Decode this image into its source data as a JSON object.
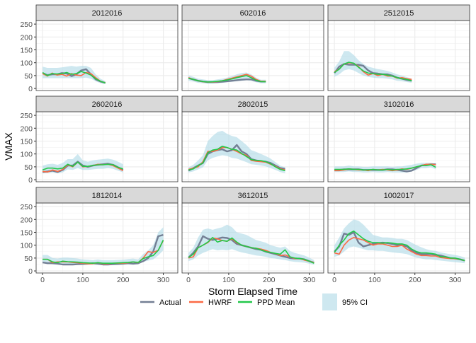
{
  "chart_data": {
    "type": "line",
    "layout": "facet-wrap 3x3",
    "xlabel": "Storm Elapsed Time",
    "ylabel": "VMAX",
    "xlim": [
      -16,
      336
    ],
    "ylim": [
      -8,
      264
    ],
    "x_ticks": [
      0,
      100,
      200,
      300
    ],
    "y_ticks": [
      0,
      50,
      100,
      150,
      200,
      250
    ],
    "grid": true,
    "legend_position": "bottom",
    "legend": [
      {
        "key": "actual",
        "label": "Actual",
        "color": "#737f94",
        "kind": "line"
      },
      {
        "key": "hwrf",
        "label": "HWRF",
        "color": "#fb6a45",
        "kind": "line"
      },
      {
        "key": "ppd",
        "label": "PPD Mean",
        "color": "#22c84a",
        "kind": "line"
      },
      {
        "key": "ci",
        "label": "95% CI",
        "color": "#add8e6",
        "kind": "fill"
      }
    ],
    "panels": [
      {
        "title": "2012016",
        "x": [
          0,
          12,
          24,
          36,
          48,
          60,
          72,
          84,
          96,
          108,
          120,
          132,
          144,
          156
        ],
        "actual": [
          60,
          52,
          55,
          55,
          60,
          58,
          48,
          55,
          70,
          75,
          55,
          35,
          27,
          22
        ],
        "hwrf": [
          58,
          48,
          60,
          52,
          55,
          48,
          58,
          52,
          50,
          62,
          58,
          42,
          28,
          22
        ],
        "ppd": [
          62,
          50,
          58,
          56,
          58,
          62,
          55,
          58,
          66,
          60,
          52,
          38,
          28,
          21
        ],
        "ci_low": [
          40,
          40,
          40,
          40,
          40,
          40,
          40,
          40,
          40,
          42,
          38,
          28,
          20,
          17
        ],
        "ci_high": [
          85,
          80,
          80,
          80,
          82,
          85,
          88,
          85,
          88,
          88,
          80,
          55,
          38,
          28
        ]
      },
      {
        "title": "602016",
        "x": [
          0,
          12,
          24,
          36,
          48,
          60,
          72,
          84,
          96,
          108,
          120,
          132,
          144,
          156,
          168,
          180,
          192
        ],
        "actual": [
          40,
          35,
          30,
          27,
          25,
          25,
          25,
          26,
          28,
          30,
          32,
          34,
          35,
          35,
          30,
          27,
          27
        ],
        "hwrf": [
          42,
          35,
          30,
          26,
          25,
          25,
          27,
          30,
          35,
          40,
          45,
          50,
          55,
          48,
          35,
          28,
          28
        ],
        "ppd": [
          40,
          35,
          30,
          27,
          25,
          26,
          28,
          30,
          33,
          37,
          42,
          46,
          50,
          42,
          32,
          27,
          26
        ],
        "ci_low": [
          30,
          27,
          22,
          20,
          18,
          18,
          20,
          22,
          24,
          26,
          28,
          30,
          32,
          30,
          24,
          20,
          20
        ],
        "ci_high": [
          52,
          45,
          38,
          35,
          32,
          32,
          35,
          38,
          42,
          48,
          55,
          60,
          62,
          55,
          42,
          34,
          34
        ]
      },
      {
        "title": "2512015",
        "x": [
          0,
          12,
          24,
          36,
          48,
          60,
          72,
          84,
          96,
          108,
          120,
          132,
          144,
          156,
          168,
          180,
          192
        ],
        "actual": [
          60,
          85,
          95,
          92,
          92,
          92,
          88,
          70,
          60,
          58,
          55,
          55,
          50,
          42,
          38,
          33,
          30
        ],
        "hwrf": [
          65,
          75,
          95,
          100,
          98,
          85,
          65,
          52,
          58,
          50,
          55,
          48,
          48,
          40,
          42,
          38,
          35
        ],
        "ppd": [
          62,
          75,
          95,
          102,
          98,
          82,
          68,
          60,
          58,
          55,
          55,
          52,
          48,
          42,
          38,
          35,
          30
        ],
        "ci_low": [
          45,
          55,
          70,
          75,
          70,
          60,
          50,
          45,
          42,
          40,
          40,
          38,
          35,
          30,
          28,
          25,
          22
        ],
        "ci_high": [
          80,
          105,
          145,
          145,
          130,
          110,
          95,
          85,
          80,
          75,
          72,
          68,
          62,
          55,
          50,
          44,
          38
        ]
      },
      {
        "title": "2602016",
        "x": [
          0,
          12.5,
          25,
          37.5,
          50,
          62.5,
          75,
          87.5,
          100,
          112.5,
          125,
          137.5,
          150,
          162.5,
          175,
          187.5,
          200
        ],
        "actual": [
          30,
          32,
          35,
          30,
          38,
          55,
          55,
          70,
          55,
          50,
          55,
          58,
          60,
          62,
          58,
          48,
          38
        ],
        "hwrf": [
          32,
          30,
          38,
          32,
          40,
          58,
          50,
          68,
          50,
          52,
          55,
          60,
          58,
          60,
          55,
          45,
          35
        ],
        "ppd": [
          38,
          45,
          45,
          42,
          45,
          60,
          52,
          68,
          52,
          52,
          55,
          58,
          58,
          60,
          58,
          48,
          42
        ],
        "ci_low": [
          25,
          25,
          28,
          25,
          28,
          40,
          38,
          45,
          38,
          38,
          40,
          42,
          42,
          45,
          42,
          35,
          28
        ],
        "ci_high": [
          55,
          60,
          62,
          58,
          65,
          80,
          80,
          100,
          75,
          70,
          75,
          78,
          80,
          82,
          78,
          70,
          60
        ]
      },
      {
        "title": "2802015",
        "x": [
          0,
          12,
          24,
          36,
          48,
          60,
          72,
          84,
          96,
          108,
          120,
          132,
          144,
          156,
          168,
          180,
          192,
          204,
          216,
          228,
          240
        ],
        "actual": [
          35,
          45,
          55,
          65,
          100,
          110,
          115,
          118,
          110,
          115,
          135,
          110,
          100,
          80,
          75,
          72,
          70,
          65,
          55,
          45,
          42
        ],
        "hwrf": [
          40,
          45,
          50,
          70,
          110,
          110,
          115,
          125,
          125,
          118,
          110,
          100,
          95,
          75,
          72,
          70,
          68,
          60,
          52,
          42,
          38
        ],
        "ppd": [
          38,
          42,
          55,
          65,
          105,
          115,
          118,
          130,
          125,
          118,
          115,
          102,
          90,
          78,
          75,
          74,
          70,
          62,
          50,
          40,
          35
        ],
        "ci_low": [
          28,
          32,
          40,
          48,
          75,
          85,
          90,
          95,
          92,
          85,
          82,
          75,
          68,
          60,
          58,
          55,
          52,
          45,
          38,
          30,
          25
        ],
        "ci_high": [
          48,
          58,
          75,
          95,
          150,
          170,
          185,
          190,
          178,
          170,
          165,
          150,
          135,
          115,
          108,
          100,
          92,
          82,
          68,
          55,
          48
        ]
      },
      {
        "title": "3102016",
        "x": [
          0,
          12,
          24,
          36,
          48,
          60,
          72,
          84,
          96,
          108,
          120,
          132,
          144,
          156,
          168,
          180,
          192,
          204,
          216,
          228,
          240,
          252
        ],
        "actual": [
          38,
          38,
          40,
          40,
          40,
          40,
          38,
          38,
          38,
          38,
          38,
          40,
          40,
          38,
          35,
          32,
          35,
          45,
          55,
          58,
          60,
          60
        ],
        "hwrf": [
          35,
          35,
          38,
          42,
          40,
          38,
          38,
          35,
          40,
          38,
          40,
          38,
          35,
          38,
          42,
          40,
          45,
          50,
          55,
          60,
          60,
          58
        ],
        "ppd": [
          40,
          40,
          40,
          42,
          40,
          40,
          38,
          38,
          40,
          38,
          38,
          40,
          38,
          40,
          40,
          42,
          45,
          50,
          55,
          55,
          58,
          48
        ],
        "ci_low": [
          30,
          30,
          30,
          32,
          30,
          30,
          28,
          28,
          30,
          28,
          28,
          30,
          28,
          28,
          28,
          28,
          32,
          38,
          45,
          45,
          48,
          40
        ],
        "ci_high": [
          52,
          52,
          52,
          55,
          52,
          52,
          50,
          50,
          52,
          52,
          52,
          52,
          50,
          52,
          52,
          55,
          58,
          62,
          65,
          66,
          66,
          60
        ]
      },
      {
        "title": "1812014",
        "x": [
          0,
          12.5,
          25,
          37.5,
          50,
          62.5,
          75,
          87.5,
          100,
          112.5,
          125,
          137.5,
          150,
          162.5,
          175,
          187.5,
          200,
          212.5,
          225,
          237.5,
          250,
          262.5,
          275,
          287.5,
          300
        ],
        "actual": [
          33,
          30,
          30,
          28,
          25,
          25,
          25,
          26,
          27,
          28,
          30,
          28,
          25,
          25,
          26,
          27,
          28,
          30,
          28,
          30,
          38,
          50,
          75,
          135,
          140
        ],
        "hwrf": [
          45,
          45,
          32,
          35,
          35,
          35,
          33,
          32,
          30,
          28,
          28,
          32,
          28,
          28,
          30,
          30,
          30,
          32,
          35,
          32,
          50,
          75,
          72,
          80,
          118
        ],
        "ppd": [
          45,
          45,
          35,
          32,
          38,
          36,
          35,
          34,
          32,
          31,
          30,
          32,
          30,
          30,
          30,
          31,
          32,
          33,
          35,
          33,
          48,
          55,
          60,
          80,
          120
        ],
        "ci_low": [
          30,
          30,
          25,
          25,
          28,
          28,
          27,
          26,
          25,
          25,
          24,
          24,
          23,
          23,
          24,
          25,
          25,
          25,
          26,
          25,
          35,
          40,
          45,
          60,
          80
        ],
        "ci_high": [
          62,
          62,
          50,
          48,
          52,
          52,
          50,
          48,
          45,
          44,
          42,
          45,
          42,
          42,
          42,
          43,
          44,
          46,
          48,
          45,
          65,
          80,
          100,
          150,
          170
        ]
      },
      {
        "title": "3612015",
        "x": [
          0,
          12,
          24,
          36,
          48,
          60,
          72,
          84,
          96,
          108,
          120,
          132,
          144,
          156,
          168,
          180,
          192,
          204,
          216,
          228,
          240,
          252,
          264,
          276,
          288,
          300,
          312
        ],
        "actual": [
          52,
          70,
          95,
          135,
          125,
          120,
          125,
          130,
          128,
          120,
          105,
          100,
          95,
          90,
          85,
          82,
          75,
          70,
          65,
          60,
          55,
          50,
          48,
          48,
          45,
          38,
          32
        ],
        "hwrf": [
          50,
          55,
          90,
          100,
          110,
          128,
          125,
          118,
          115,
          125,
          110,
          100,
          95,
          90,
          88,
          85,
          80,
          72,
          68,
          60,
          62,
          55,
          48,
          48,
          42,
          38,
          32
        ],
        "ppd": [
          52,
          65,
          90,
          100,
          112,
          130,
          112,
          118,
          115,
          128,
          112,
          100,
          95,
          90,
          88,
          82,
          75,
          72,
          68,
          65,
          82,
          55,
          50,
          48,
          45,
          38,
          30
        ],
        "ci_low": [
          38,
          45,
          60,
          70,
          78,
          85,
          80,
          82,
          80,
          85,
          78,
          72,
          68,
          64,
          60,
          58,
          55,
          50,
          48,
          45,
          42,
          38,
          35,
          34,
          32,
          28,
          24
        ],
        "ci_high": [
          70,
          90,
          130,
          160,
          165,
          160,
          165,
          170,
          180,
          170,
          150,
          145,
          140,
          130,
          120,
          115,
          110,
          100,
          95,
          90,
          95,
          78,
          70,
          65,
          60,
          52,
          42
        ]
      },
      {
        "title": "1002017",
        "x": [
          0,
          12,
          24,
          36,
          48,
          60,
          72,
          84,
          96,
          108,
          120,
          132,
          144,
          156,
          168,
          180,
          192,
          204,
          216,
          228,
          240,
          252,
          264,
          276,
          288,
          300,
          312,
          324
        ],
        "actual": [
          75,
          95,
          145,
          140,
          150,
          110,
          95,
          100,
          105,
          108,
          110,
          108,
          105,
          100,
          100,
          95,
          80,
          70,
          65,
          65,
          65,
          62,
          60,
          55,
          50,
          48,
          45,
          40
        ],
        "hwrf": [
          70,
          65,
          100,
          120,
          130,
          125,
          120,
          110,
          100,
          105,
          105,
          100,
          95,
          95,
          100,
          85,
          75,
          65,
          60,
          60,
          58,
          58,
          52,
          50,
          48,
          48,
          45,
          40
        ],
        "ppd": [
          72,
          100,
          120,
          145,
          155,
          140,
          125,
          115,
          110,
          110,
          108,
          110,
          108,
          105,
          105,
          100,
          85,
          75,
          70,
          70,
          68,
          65,
          55,
          55,
          50,
          50,
          45,
          40
        ],
        "ci_low": [
          55,
          60,
          75,
          90,
          95,
          90,
          85,
          80,
          80,
          78,
          78,
          75,
          72,
          70,
          68,
          65,
          58,
          52,
          48,
          45,
          45,
          42,
          40,
          38,
          36,
          34,
          32,
          30
        ],
        "ci_high": [
          100,
          130,
          165,
          185,
          200,
          195,
          180,
          160,
          140,
          135,
          130,
          130,
          128,
          125,
          125,
          120,
          110,
          100,
          92,
          85,
          80,
          78,
          72,
          68,
          65,
          62,
          58,
          52
        ]
      }
    ]
  }
}
